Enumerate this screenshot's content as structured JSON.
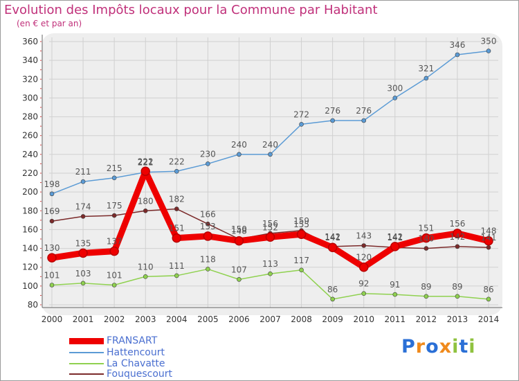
{
  "chart_data": {
    "type": "line",
    "title": "Evolution des Impôts locaux pour la Commune par Habitant",
    "subtitle": "(en € et par an)",
    "x": [
      "2000",
      "2001",
      "2002",
      "2003",
      "2004",
      "2005",
      "2006",
      "2007",
      "2008",
      "2009",
      "2010",
      "2011",
      "2012",
      "2013",
      "2014"
    ],
    "ylim": [
      80,
      360
    ],
    "yticks": [
      80,
      100,
      120,
      140,
      160,
      180,
      200,
      220,
      240,
      260,
      280,
      300,
      320,
      340,
      360
    ],
    "grid": true,
    "legend_position": "bottom-left",
    "series": [
      {
        "name": "FRANSART",
        "color": "#ee0000",
        "values": [
          130,
          135,
          137,
          222,
          151,
          153,
          148,
          152,
          155,
          141,
          120,
          142,
          151,
          156,
          148
        ]
      },
      {
        "name": "Hattencourt",
        "color": "#5b9bd5",
        "values": [
          198,
          211,
          215,
          221,
          222,
          230,
          240,
          240,
          272,
          276,
          276,
          300,
          321,
          346,
          350
        ]
      },
      {
        "name": "La Chavatte",
        "color": "#8fd14f",
        "values": [
          101,
          103,
          101,
          110,
          111,
          118,
          107,
          113,
          117,
          86,
          92,
          91,
          89,
          89,
          86
        ]
      },
      {
        "name": "Fouquescourt",
        "color": "#7b2a2a",
        "values": [
          169,
          174,
          175,
          180,
          182,
          166,
          150,
          156,
          159,
          142,
          143,
          141,
          140,
          142,
          141
        ]
      }
    ]
  },
  "logo": {
    "letters": [
      "P",
      "r",
      "o",
      "x",
      "i",
      "t",
      "i"
    ],
    "colors": [
      "#2a6fd6",
      "#f08a1c",
      "#2a6fd6",
      "#f08a1c",
      "#8fc23f",
      "#2a6fd6",
      "#8fc23f"
    ]
  }
}
